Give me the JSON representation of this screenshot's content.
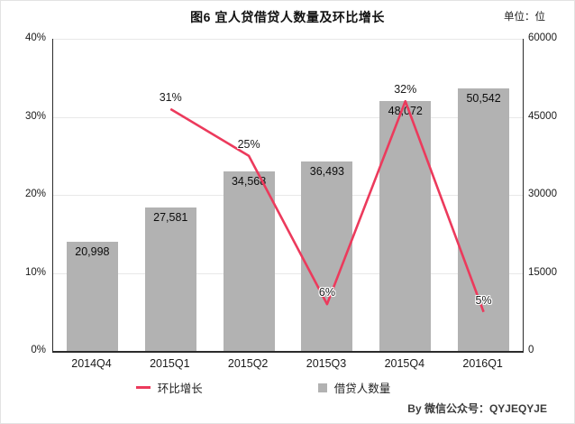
{
  "title": "图6  宜人贷借贷人数量及环比增长",
  "unit_label": "单位：位",
  "byline": "By  微信公众号：QYJEQYJE",
  "legend": {
    "line_label": "环比增长",
    "bar_label": "借贷人数量"
  },
  "colors": {
    "bar": "#b2b2b2",
    "line": "#ec3a5c",
    "axis": "#2b2b2b",
    "grid": "#e8e8e8"
  },
  "chart_data": {
    "type": "bar+line",
    "title": "图6  宜人贷借贷人数量及环比增长",
    "categories": [
      "2014Q4",
      "2015Q1",
      "2015Q2",
      "2015Q3",
      "2015Q4",
      "2016Q1"
    ],
    "series": [
      {
        "name": "借贷人数量",
        "type": "bar",
        "axis": "right",
        "values": [
          20998,
          27581,
          34568,
          36493,
          48072,
          50542
        ],
        "labels": [
          "20,998",
          "27,581",
          "34,568",
          "36,493",
          "48,072",
          "50,542"
        ],
        "color": "#b2b2b2"
      },
      {
        "name": "环比增长",
        "type": "line",
        "axis": "left",
        "values": [
          null,
          0.31,
          0.25,
          0.06,
          0.32,
          0.05
        ],
        "labels": [
          "",
          "31%",
          "25%",
          "6%",
          "32%",
          "5%"
        ],
        "color": "#ec3a5c"
      }
    ],
    "left_axis": {
      "ticks": [
        "40%",
        "30%",
        "20%",
        "10%",
        "0%"
      ],
      "min": 0,
      "max": 0.4,
      "label": "环比增长"
    },
    "right_axis": {
      "ticks": [
        "60000",
        "45000",
        "30000",
        "15000",
        "0"
      ],
      "min": 0,
      "max": 60000,
      "label": "单位：位"
    },
    "grid": true,
    "legend_position": "bottom"
  }
}
